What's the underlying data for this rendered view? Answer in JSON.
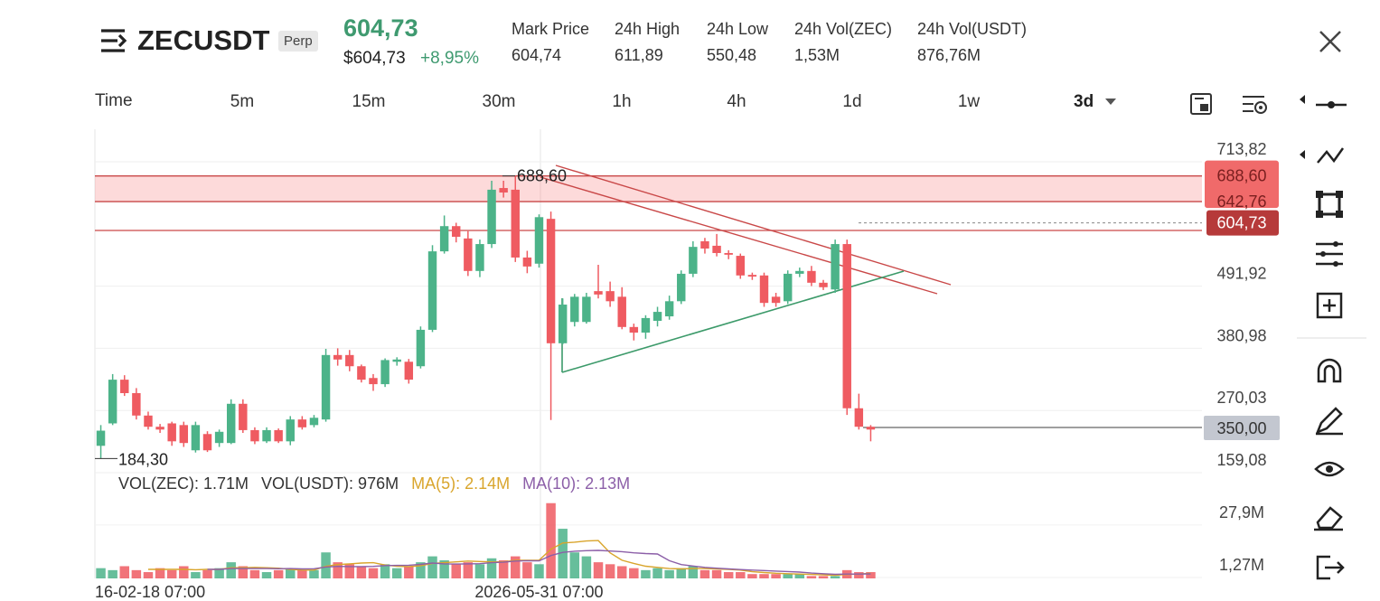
{
  "header": {
    "symbol": "ZECUSDT",
    "badge": "Perp",
    "last_price": "604,73",
    "last_price_usd": "$604,73",
    "change": "+8,95%",
    "stats": [
      {
        "label": "Mark Price",
        "value": "604,74"
      },
      {
        "label": "24h High",
        "value": "611,89"
      },
      {
        "label": "24h Low",
        "value": "550,48"
      },
      {
        "label": "24h Vol(ZEC)",
        "value": "1,53M"
      },
      {
        "label": "24h Vol(USDT)",
        "value": "876,76M"
      }
    ]
  },
  "timeframes": {
    "label": "Time",
    "options": [
      "5m",
      "15m",
      "30m",
      "1h",
      "4h",
      "1d",
      "1w"
    ],
    "selected": "3d"
  },
  "chart_data": {
    "type": "candlestick",
    "categories": [
      null,
      null,
      null,
      "16-02-18 07:00",
      null,
      null,
      null,
      null,
      null,
      null,
      null,
      null,
      null,
      null,
      null,
      null,
      null,
      null,
      null,
      null,
      null,
      null,
      null,
      null,
      null,
      null,
      null,
      null,
      null,
      null,
      null,
      null,
      null,
      null,
      null,
      null,
      null,
      "2026-05-31 07:00",
      null,
      null,
      null,
      null,
      null,
      null,
      null,
      null,
      null,
      null,
      null,
      null,
      null,
      null,
      null,
      null,
      null,
      null,
      null,
      null,
      null,
      null,
      null,
      null,
      null,
      null,
      null,
      null
    ],
    "open": [
      207,
      247,
      325,
      301,
      261,
      241,
      247,
      244,
      199,
      228,
      212,
      212,
      282,
      235,
      215,
      235,
      215,
      254,
      244,
      254,
      369,
      369,
      349,
      328,
      317,
      357,
      357,
      349,
      414,
      554,
      599,
      577,
      519,
      567,
      667,
      664,
      543,
      532,
      612,
      390,
      428,
      428,
      483,
      483,
      473,
      419,
      409,
      430,
      438,
      465,
      514,
      572,
      564,
      551,
      546,
      512,
      511,
      473,
      465,
      514,
      519,
      498,
      486,
      567,
      274,
      241
    ],
    "high": [
      244,
      335,
      333,
      310,
      268,
      246,
      250,
      250,
      250,
      233,
      236,
      290,
      290,
      240,
      240,
      238,
      260,
      260,
      262,
      380,
      381,
      378,
      352,
      335,
      363,
      365,
      362,
      420,
      565,
      618,
      605,
      590,
      575,
      680,
      680,
      688.6,
      555,
      620,
      625,
      470,
      478,
      480,
      530,
      500,
      490,
      425,
      440,
      455,
      475,
      520,
      572,
      578,
      585,
      556,
      550,
      516,
      516,
      480,
      520,
      525,
      528,
      503,
      575,
      575,
      300,
      244
    ],
    "low": [
      184.3,
      244,
      296,
      254,
      236,
      230,
      207,
      205,
      195,
      196,
      205,
      210,
      230,
      210,
      212,
      212,
      208,
      236,
      240,
      250,
      350,
      340,
      320,
      305,
      312,
      350,
      318,
      345,
      410,
      550,
      570,
      510,
      508,
      560,
      650,
      535,
      515,
      525,
      253,
      388,
      420,
      425,
      470,
      455,
      415,
      395,
      398,
      420,
      432,
      460,
      508,
      550,
      545,
      540,
      505,
      503,
      455,
      455,
      460,
      508,
      492,
      485,
      480,
      262,
      236,
      215
    ],
    "close": [
      234,
      325,
      301,
      261,
      241,
      236,
      215,
      212,
      244,
      199,
      232,
      282,
      235,
      215,
      235,
      215,
      254,
      240,
      257,
      369,
      361,
      349,
      325,
      317,
      360,
      361,
      325,
      414,
      554,
      599,
      580,
      519,
      567,
      664,
      659,
      543,
      527,
      615,
      390,
      459,
      473,
      473,
      477,
      465,
      419,
      409,
      435,
      446,
      465,
      514,
      562,
      559,
      551,
      548,
      511,
      509,
      462,
      462,
      514,
      519,
      498,
      490,
      567,
      274,
      241,
      236
    ],
    "up_color": "#4cb389",
    "down_color": "#ef5b61",
    "ylim": [
      159.08,
      771.9
    ],
    "yticks": [
      {
        "value": 713.82,
        "label": "713,82"
      },
      {
        "value": 491.92,
        "label": "491,92"
      },
      {
        "value": 380.98,
        "label": "380,98"
      },
      {
        "value": 270.03,
        "label": "270,03"
      },
      {
        "value": 159.08,
        "label": "159,08"
      }
    ],
    "grid": true,
    "zone": [
      {
        "value": 688.6,
        "label": "688,60"
      },
      {
        "value": 642.76,
        "label": "642,76"
      }
    ],
    "last": {
      "value": 604.73,
      "label": "604,73"
    },
    "alert_label": "350,00",
    "annotations": [
      {
        "value": 688.6,
        "label": "688,60"
      },
      {
        "value": 184.3,
        "label": "184,30"
      }
    ],
    "volume": {
      "labels": [
        "VOL(ZEC): 1.71M",
        "VOL(USDT): 976M"
      ],
      "values": [
        6,
        5,
        7,
        5,
        4,
        6,
        5,
        7,
        4,
        5,
        6,
        9,
        7,
        5,
        4,
        5,
        6,
        5,
        5,
        14,
        9,
        8,
        7,
        6,
        8,
        6,
        7,
        9,
        12,
        10,
        8,
        9,
        8,
        11,
        10,
        12,
        9,
        8,
        39,
        26,
        14,
        12,
        9,
        8,
        7,
        6,
        5,
        6,
        5,
        6,
        7,
        5,
        5,
        4,
        4,
        3,
        3,
        3,
        3,
        3,
        2,
        2,
        2,
        5,
        4,
        4
      ],
      "ylim": [
        0.8,
        51.26
      ],
      "yticks": [
        {
          "value": 27.9,
          "label": "27,9M"
        },
        {
          "value": 1.27,
          "label": "1,27M"
        }
      ],
      "series": [
        {
          "name": "MA(5): 2.14M",
          "color": "#d9a52c",
          "values": [
            null,
            null,
            null,
            null,
            5.4,
            5.4,
            5.4,
            5.4,
            5.2,
            5.4,
            5.4,
            6.2,
            6.2,
            6.4,
            6.2,
            6,
            5.4,
            5,
            5,
            7,
            7.8,
            8.2,
            8.6,
            8.8,
            7.6,
            7,
            6.8,
            7.2,
            8.4,
            8.8,
            9.2,
            9.6,
            9.4,
            9.2,
            9.2,
            10,
            10,
            10,
            15.6,
            18.8,
            19.2,
            19.8,
            20,
            13.8,
            10,
            8.4,
            7,
            6.4,
            5.8,
            5.6,
            5.8,
            5.8,
            5.6,
            5.4,
            5,
            4.2,
            3.8,
            3.4,
            3.2,
            3,
            2.8,
            2.6,
            2.4,
            2.8,
            3,
            3.4
          ]
        },
        {
          "name": "MA(10): 2.13M",
          "color": "#8c5fa8",
          "values": [
            null,
            null,
            null,
            null,
            null,
            null,
            null,
            null,
            null,
            5.4,
            5.4,
            5.8,
            5.8,
            5.8,
            5.8,
            5.7,
            5.8,
            5.6,
            5.7,
            6.6,
            6.9,
            6.8,
            6.8,
            6.9,
            7.3,
            7.4,
            7.5,
            7.9,
            8.6,
            8.2,
            8.1,
            8.2,
            8.3,
            8.8,
            9,
            9.6,
            9.8,
            9.7,
            12.4,
            14,
            14.6,
            14.9,
            15,
            14.7,
            14.4,
            13.8,
            13.4,
            13.2,
            9.8,
            7.8,
            7.1,
            6.4,
            6,
            5.6,
            5.3,
            5,
            4.8,
            4.5,
            4.3,
            4,
            3.5,
            3.2,
            2.9,
            3,
            3,
            3.1
          ]
        }
      ]
    }
  }
}
